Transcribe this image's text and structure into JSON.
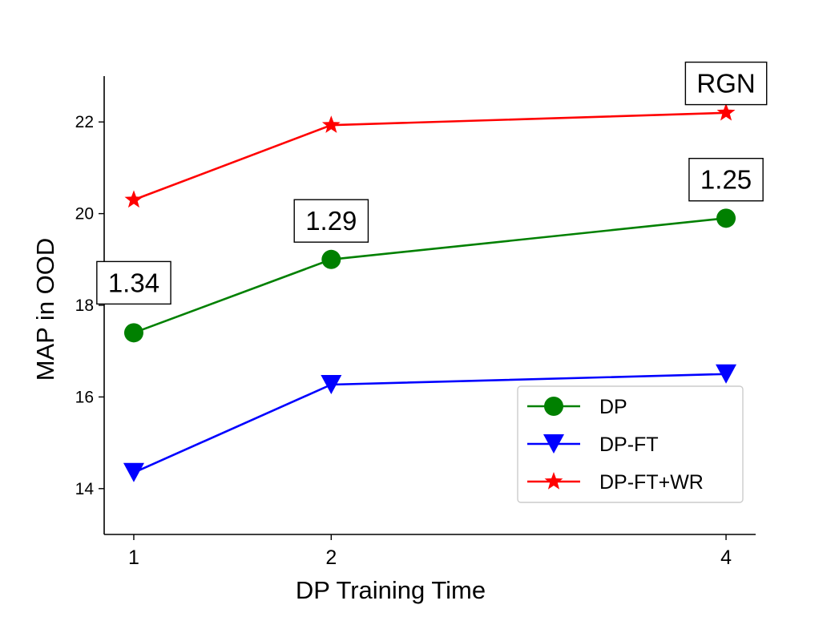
{
  "chart_data": {
    "type": "line",
    "title": "",
    "xlabel": "DP Training Time",
    "ylabel": "MAP in OOD",
    "x": [
      1,
      2,
      4
    ],
    "x_ticks": [
      "1",
      "2",
      "4"
    ],
    "xlim": [
      0.85,
      4.15
    ],
    "y_ticks": [
      14,
      16,
      18,
      20,
      22
    ],
    "ylim": [
      13,
      23
    ],
    "grid": false,
    "legend_position": "lower-right",
    "series": [
      {
        "name": "DP",
        "values": [
          17.4,
          19.0,
          19.9
        ],
        "color": "#008000",
        "marker": "circle"
      },
      {
        "name": "DP-FT",
        "values": [
          14.35,
          16.27,
          16.5
        ],
        "color": "#0000ff",
        "marker": "triangle-down"
      },
      {
        "name": "DP-FT+WR",
        "values": [
          20.3,
          21.93,
          22.2
        ],
        "color": "#ff0000",
        "marker": "star"
      }
    ],
    "annotations": [
      {
        "text": "1.34",
        "x": 1,
        "y": 18.5
      },
      {
        "text": "1.29",
        "x": 2,
        "y": 19.85
      },
      {
        "text": "1.25",
        "x": 4,
        "y": 20.75
      },
      {
        "text": "RGN",
        "x": 4,
        "y": 22.85
      }
    ]
  }
}
